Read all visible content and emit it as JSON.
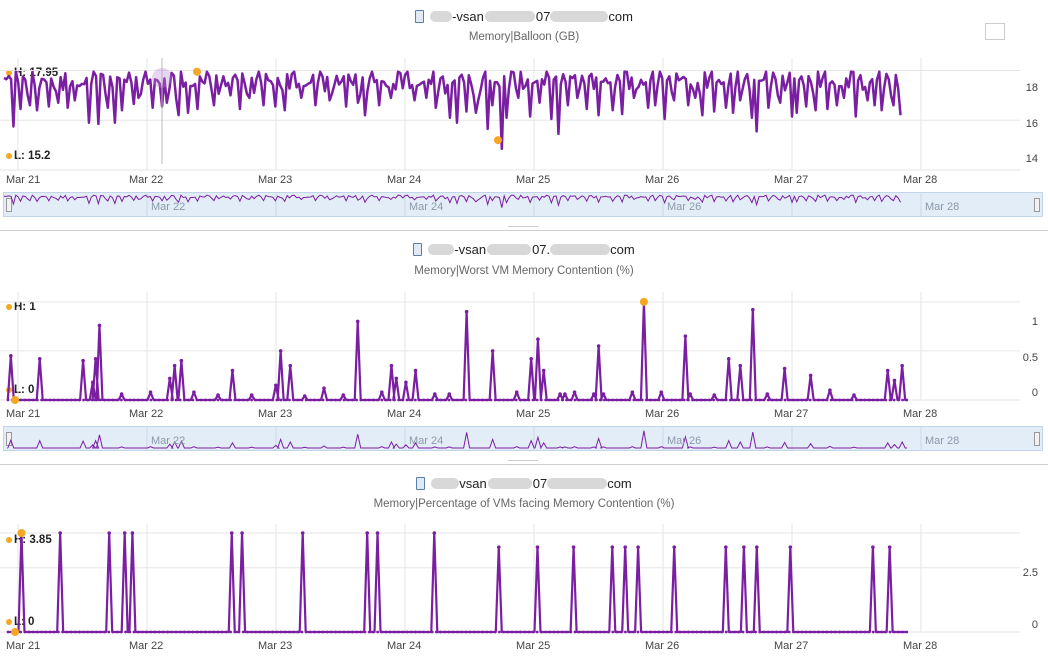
{
  "panels": [
    {
      "host_prefix": "-vsan",
      "host_mid": "07",
      "host_suffix": "com",
      "subtitle": "Memory|Balloon (GB)",
      "high_label": "H: 17.95",
      "low_label": "L: 15.2",
      "y_ticks": [
        "18",
        "16",
        "14"
      ],
      "x_ticks": [
        "Mar 21",
        "Mar 22",
        "Mar 23",
        "Mar 24",
        "Mar 25",
        "Mar 26",
        "Mar 27",
        "Mar 28"
      ],
      "nav_ticks": [
        "Mar 22",
        "Mar 24",
        "Mar 26",
        "Mar 28"
      ]
    },
    {
      "host_prefix": "-vsan",
      "host_mid": "07.",
      "host_suffix": "com",
      "subtitle": "Memory|Worst VM Memory Contention (%)",
      "high_label": "H: 1",
      "low_label": "L: 0",
      "y_ticks": [
        "1",
        "0.5",
        "0"
      ],
      "x_ticks": [
        "Mar 21",
        "Mar 22",
        "Mar 23",
        "Mar 24",
        "Mar 25",
        "Mar 26",
        "Mar 27",
        "Mar 28"
      ],
      "nav_ticks": [
        "Mar 22",
        "Mar 24",
        "Mar 26",
        "Mar 28"
      ]
    },
    {
      "host_prefix": "vsan",
      "host_mid": "07",
      "host_suffix": "com",
      "subtitle": "Memory|Percentage of VMs facing Memory Contention (%)",
      "high_label": "H: 3.85",
      "low_label": "L: 0",
      "y_ticks": [
        "2.5",
        "0"
      ],
      "x_ticks": [
        "Mar 21",
        "Mar 22",
        "Mar 23",
        "Mar 24",
        "Mar 25",
        "Mar 26",
        "Mar 27",
        "Mar 28"
      ],
      "nav_ticks": []
    }
  ],
  "colors": {
    "series": "#7b1fa2",
    "marker": "#f5a623",
    "grid": "#e6e6e6",
    "nav_bg": "#e3edf8"
  },
  "chart_data": [
    {
      "type": "line",
      "x_range": [
        "Mar 21",
        "Mar 28"
      ],
      "ylim": [
        14,
        18.5
      ],
      "high": 17.95,
      "low": 15.2,
      "series": [
        {
          "base": 17.7,
          "dips": [
            [
              0.07,
              16.1
            ],
            [
              0.13,
              16.8
            ],
            [
              0.2,
              16.6
            ],
            [
              0.25,
              16.4
            ],
            [
              0.28,
              17.3
            ],
            [
              0.35,
              16.9
            ],
            [
              0.42,
              16.7
            ],
            [
              0.5,
              16.5
            ],
            [
              0.55,
              16.8
            ],
            [
              0.66,
              15.9
            ],
            [
              0.73,
              16.2
            ],
            [
              0.8,
              16.5
            ],
            [
              0.86,
              15.9
            ],
            [
              0.92,
              16.4
            ],
            [
              1.0,
              17.0
            ],
            [
              1.05,
              16.9
            ],
            [
              1.15,
              16.5
            ],
            [
              1.22,
              16.9
            ],
            [
              1.26,
              16.7
            ],
            [
              1.33,
              17.2
            ],
            [
              1.36,
              16.2
            ],
            [
              1.42,
              16.3
            ],
            [
              1.5,
              16.8
            ],
            [
              1.62,
              16.6
            ],
            [
              1.75,
              17.0
            ],
            [
              1.83,
              16.8
            ],
            [
              1.9,
              16.9
            ],
            [
              2.02,
              16.6
            ],
            [
              2.1,
              16.9
            ],
            [
              2.17,
              16.4
            ],
            [
              2.3,
              16.9
            ],
            [
              2.42,
              16.6
            ],
            [
              2.52,
              16.8
            ],
            [
              2.65,
              16.9
            ],
            [
              2.75,
              16.7
            ],
            [
              2.8,
              16.2
            ],
            [
              2.9,
              16.6
            ],
            [
              3.0,
              16.9
            ],
            [
              3.18,
              16.8
            ],
            [
              3.28,
              16.9
            ],
            [
              3.35,
              16.5
            ],
            [
              3.45,
              16.1
            ],
            [
              3.52,
              15.9
            ],
            [
              3.58,
              16.7
            ],
            [
              3.65,
              16.3
            ],
            [
              3.68,
              16.8
            ],
            [
              3.75,
              16.0
            ],
            [
              3.78,
              16.6
            ],
            [
              3.86,
              15.2
            ],
            [
              3.9,
              16.1
            ],
            [
              3.98,
              16.9
            ],
            [
              4.08,
              16.5
            ],
            [
              4.15,
              16.7
            ],
            [
              4.25,
              16.4
            ],
            [
              4.3,
              15.8
            ],
            [
              4.38,
              16.6
            ],
            [
              4.45,
              16.9
            ],
            [
              4.52,
              16.8
            ],
            [
              4.6,
              16.2
            ],
            [
              4.72,
              16.4
            ],
            [
              4.8,
              16.6
            ],
            [
              4.88,
              16.9
            ],
            [
              5.0,
              16.5
            ],
            [
              5.05,
              16.6
            ],
            [
              5.12,
              16.4
            ],
            [
              5.2,
              16.8
            ],
            [
              5.3,
              16.6
            ],
            [
              5.35,
              16.9
            ],
            [
              5.42,
              16.2
            ],
            [
              5.5,
              16.7
            ],
            [
              5.6,
              16.5
            ],
            [
              5.65,
              16.3
            ],
            [
              5.7,
              16.8
            ],
            [
              5.8,
              16.1
            ],
            [
              5.84,
              15.9
            ],
            [
              5.92,
              16.5
            ],
            [
              6.02,
              16.7
            ],
            [
              6.1,
              16.5
            ],
            [
              6.15,
              16.3
            ],
            [
              6.22,
              16.9
            ],
            [
              6.3,
              16.4
            ],
            [
              6.38,
              16.8
            ],
            [
              6.45,
              16.6
            ],
            [
              6.52,
              16.9
            ],
            [
              6.6,
              16.5
            ],
            [
              6.7,
              16.8
            ],
            [
              6.75,
              16.6
            ],
            [
              6.8,
              16.4
            ],
            [
              6.9,
              16.6
            ],
            [
              6.95,
              16.2
            ]
          ],
          "end_x": 6.95
        }
      ]
    },
    {
      "type": "line",
      "x_range": [
        "Mar 21",
        "Mar 28"
      ],
      "ylim": [
        0,
        1.1
      ],
      "high": 1,
      "low": 0,
      "series": [
        {
          "spikes": [
            [
              0.05,
              0.45
            ],
            [
              0.35,
              0.42
            ],
            [
              0.8,
              0.4
            ],
            [
              0.9,
              0.18
            ],
            [
              0.93,
              0.42
            ],
            [
              0.97,
              0.76
            ],
            [
              1.2,
              0.06
            ],
            [
              1.5,
              0.08
            ],
            [
              1.7,
              0.22
            ],
            [
              1.75,
              0.35
            ],
            [
              1.82,
              0.4
            ],
            [
              1.95,
              0.08
            ],
            [
              2.2,
              0.05
            ],
            [
              2.35,
              0.3
            ],
            [
              2.55,
              0.05
            ],
            [
              2.8,
              0.15
            ],
            [
              2.85,
              0.5
            ],
            [
              2.95,
              0.35
            ],
            [
              3.1,
              0.04
            ],
            [
              3.3,
              0.12
            ],
            [
              3.5,
              0.05
            ],
            [
              3.65,
              0.8
            ],
            [
              3.9,
              0.08
            ],
            [
              4.0,
              0.35
            ],
            [
              4.05,
              0.22
            ],
            [
              4.15,
              0.18
            ],
            [
              4.25,
              0.3
            ],
            [
              4.45,
              0.06
            ],
            [
              4.6,
              0.06
            ],
            [
              4.78,
              0.9
            ],
            [
              5.05,
              0.5
            ],
            [
              5.3,
              0.08
            ],
            [
              5.45,
              0.42
            ],
            [
              5.52,
              0.62
            ],
            [
              5.58,
              0.3
            ],
            [
              5.75,
              0.06
            ],
            [
              5.8,
              0.06
            ],
            [
              5.9,
              0.08
            ],
            [
              6.1,
              0.06
            ],
            [
              6.15,
              0.55
            ],
            [
              6.2,
              0.06
            ],
            [
              6.5,
              0.08
            ],
            [
              6.62,
              1.0
            ],
            [
              6.8,
              0.08
            ],
            [
              7.05,
              0.65
            ],
            [
              7.1,
              0.06
            ],
            [
              7.35,
              0.05
            ],
            [
              7.5,
              0.42
            ],
            [
              7.62,
              0.35
            ],
            [
              7.75,
              0.92
            ],
            [
              7.9,
              0.06
            ],
            [
              8.08,
              0.32
            ],
            [
              8.35,
              0.25
            ],
            [
              8.55,
              0.1
            ],
            [
              8.8,
              0.05
            ],
            [
              9.15,
              0.3
            ],
            [
              9.22,
              0.2
            ],
            [
              9.3,
              0.35
            ]
          ],
          "end_x": 7.0
        }
      ]
    },
    {
      "type": "line",
      "x_range": [
        "Mar 21",
        "Mar 28"
      ],
      "ylim": [
        0,
        4.2
      ],
      "high": 3.85,
      "low": 0,
      "series": [
        {
          "spikes": [
            [
              0.12,
              3.85
            ],
            [
              0.42,
              3.85
            ],
            [
              0.8,
              3.85
            ],
            [
              0.92,
              3.85
            ],
            [
              0.98,
              3.85
            ],
            [
              1.75,
              3.85
            ],
            [
              1.83,
              3.85
            ],
            [
              2.3,
              3.85
            ],
            [
              2.8,
              3.85
            ],
            [
              2.88,
              3.85
            ],
            [
              3.32,
              3.85
            ],
            [
              3.82,
              3.3
            ],
            [
              4.12,
              3.3
            ],
            [
              4.4,
              3.3
            ],
            [
              4.7,
              3.3
            ],
            [
              4.8,
              3.3
            ],
            [
              4.9,
              3.3
            ],
            [
              5.18,
              3.3
            ],
            [
              5.58,
              3.3
            ],
            [
              5.72,
              3.3
            ],
            [
              5.82,
              3.3
            ],
            [
              6.08,
              3.3
            ],
            [
              6.72,
              3.3
            ],
            [
              6.85,
              3.3
            ]
          ],
          "end_x": 7.0
        }
      ]
    }
  ]
}
